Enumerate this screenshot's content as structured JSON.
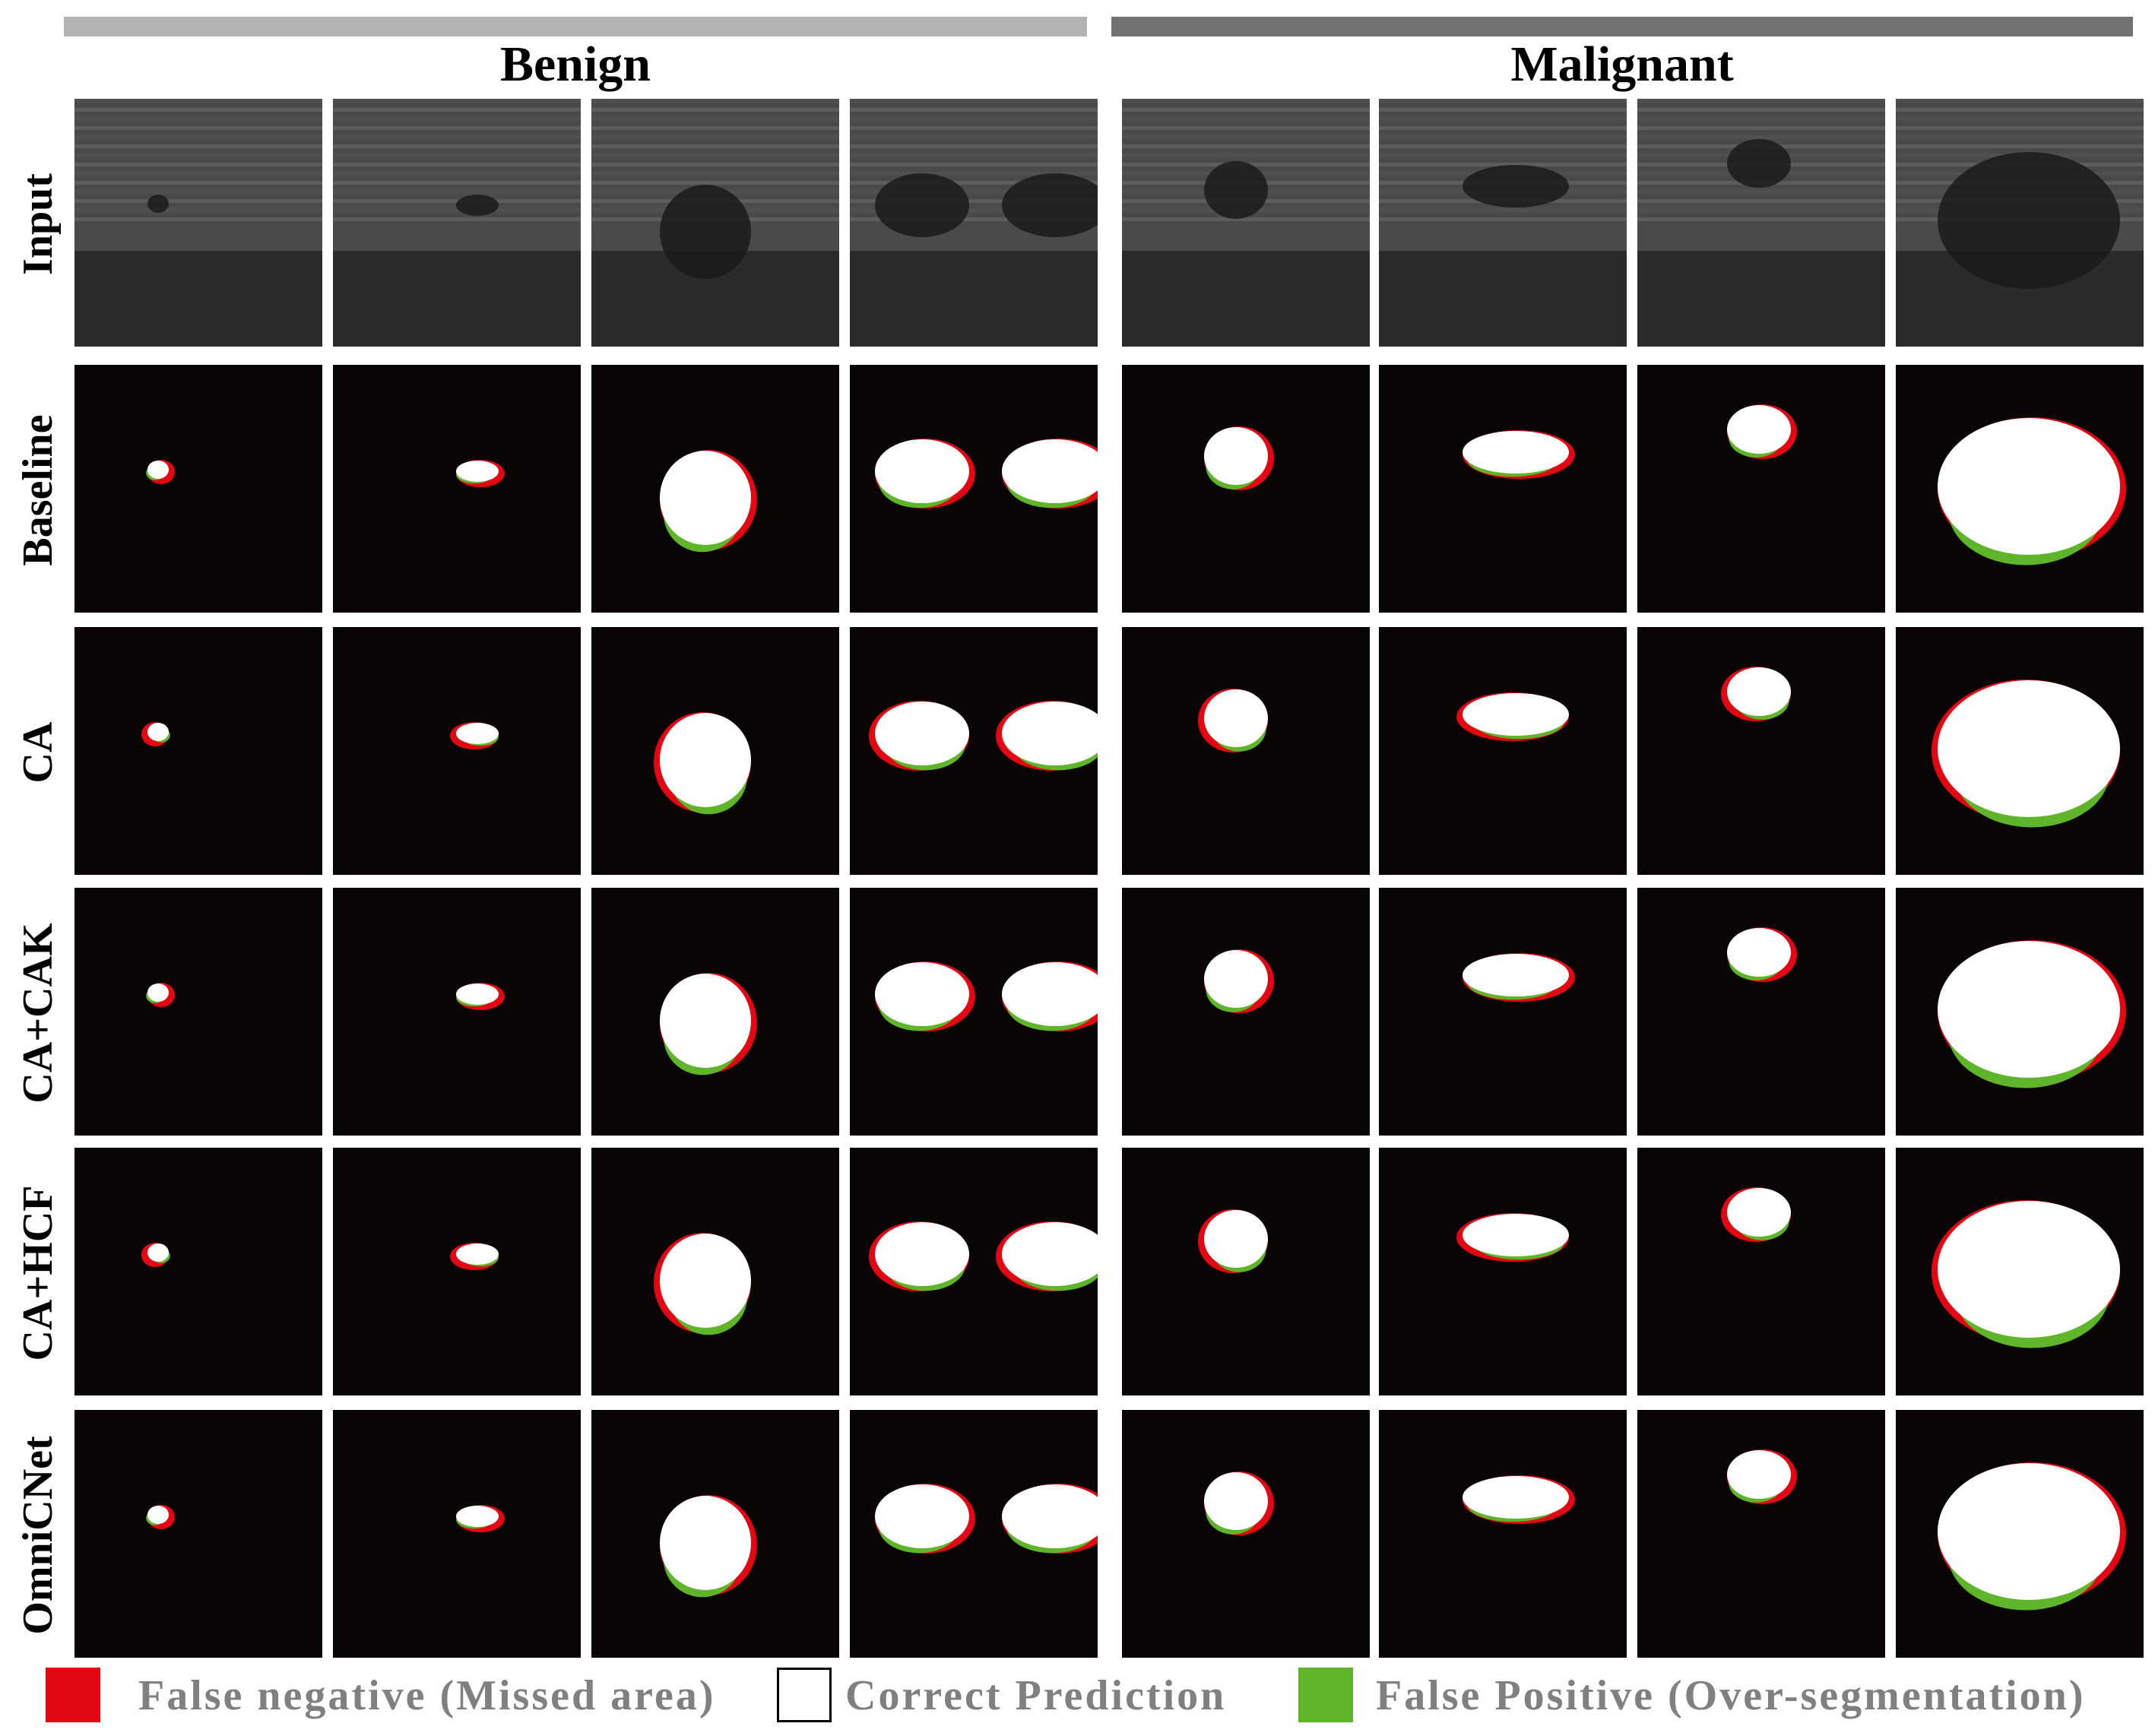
{
  "groups": {
    "benign": "Benign",
    "malignant": "Malignant"
  },
  "rows": [
    "Input",
    "Baseline",
    "CA",
    "CA+CAK",
    "CA+HCF",
    "OmniCNet"
  ],
  "legend": {
    "false_negative": "False negative (Missed area)",
    "correct": "Correct Prediction",
    "false_positive": "False Positive (Over-segmentation)"
  },
  "colors": {
    "false_negative": "#e30613",
    "correct": "#ffffff",
    "false_positive": "#5fb52a",
    "background": "#0a0505",
    "benign_bar": "#b3b3b3",
    "malignant_bar": "#737373"
  }
}
